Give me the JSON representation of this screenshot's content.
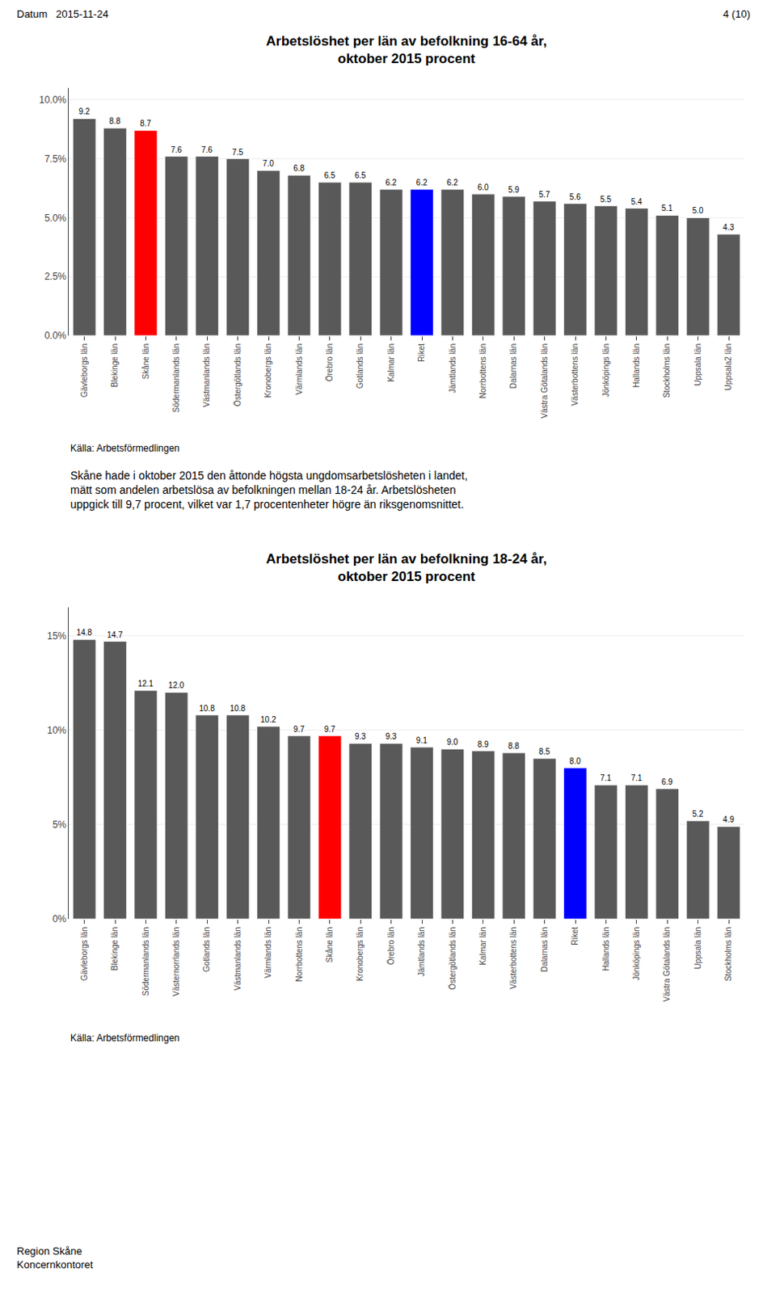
{
  "chart_data": [
    {
      "type": "bar",
      "title": "Arbetslöshet per län av befolkning 16-64 år,\noktober 2015 procent",
      "categories": [
        "Gävleborgs län",
        "Blekinge län",
        "Skåne län",
        "Södermanlands län",
        "Västmanlands län",
        "Östergötlands län",
        "Kronobergs län",
        "Värmlands län",
        "Örebro län",
        "Gotlands län",
        "Kalmar län",
        "Riket",
        "Jämtlands län",
        "Norrbottens län",
        "Dalarnas län",
        "Västra Götalands län",
        "Västerbottens län",
        "Jönköpings län",
        "Hallands län",
        "Stockholms län",
        "Uppsala län",
        "Uppsala2 län"
      ],
      "values": [
        9.2,
        8.8,
        8.7,
        7.6,
        7.6,
        7.5,
        7.0,
        6.8,
        6.5,
        6.5,
        6.2,
        6.2,
        6.2,
        6.0,
        5.9,
        5.7,
        5.6,
        5.5,
        5.4,
        5.1,
        5.0,
        4.3
      ],
      "value_labels": [
        "9.2",
        "8.8",
        "8.7",
        "7.6",
        "7.6",
        "7.5",
        "7.0",
        "6.8",
        "6.5",
        "6.5",
        "6.2",
        "6.2",
        "6.2",
        "6.0",
        "5.9",
        "5.7",
        "5.6",
        "5.5",
        "5.4",
        "5.1",
        "5.0",
        "4.3"
      ],
      "colors": [
        "#595959",
        "#595959",
        "#FF0000",
        "#595959",
        "#595959",
        "#595959",
        "#595959",
        "#595959",
        "#595959",
        "#595959",
        "#595959",
        "#0000FF",
        "#595959",
        "#595959",
        "#595959",
        "#595959",
        "#595959",
        "#595959",
        "#595959",
        "#595959",
        "#595959",
        "#595959"
      ],
      "ylim": [
        0,
        10.5
      ],
      "yticks": [
        {
          "value": 0.0,
          "label": "0.0%"
        },
        {
          "value": 2.5,
          "label": "2.5%"
        },
        {
          "value": 5.0,
          "label": "5.0%"
        },
        {
          "value": 7.5,
          "label": "7.5%"
        },
        {
          "value": 10.0,
          "label": "10.0%"
        }
      ],
      "grid": true,
      "data_labels": true,
      "annotations": [
        "Datum   2015-11-24",
        "4 (10)",
        "Källa: Arbetsförmedlingen",
        "Skåne hade i oktober 2015 den åttonde högsta ungdomsarbetslösheten i landet,\nmätt som andelen arbetslösa av befolkningen mellan 18-24 år. Arbetslösheten\nuppgick till 9,7 procent, vilket var 1,7 procentenheter högre än riksgenomsnittet."
      ]
    },
    {
      "type": "bar",
      "title": "Arbetslöshet per län av befolkning 18-24 år,\noktober 2015 procent",
      "categories": [
        "Gävleborgs län",
        "Blekinge län",
        "Södermanlands län",
        "Västernorrlands län",
        "Gotlands län",
        "Västmanlands län",
        "Värmlands län",
        "Norrbottens län",
        "Skåne län",
        "Kronobergs län",
        "Örebro län",
        "Jämtlands län",
        "Östergötlands län",
        "Kalmar län",
        "Västerbottens län",
        "Dalarnas län",
        "Riket",
        "Hallands län",
        "Jönköpings län",
        "Västra Götalands län",
        "Uppsala län",
        "Stockholms län"
      ],
      "values": [
        14.8,
        14.7,
        12.1,
        12.0,
        10.8,
        10.8,
        10.2,
        9.7,
        9.7,
        9.3,
        9.3,
        9.1,
        9.0,
        8.9,
        8.8,
        8.5,
        8.0,
        7.1,
        7.1,
        6.9,
        5.2,
        4.9
      ],
      "value_labels": [
        "14.8",
        "14.7",
        "12.1",
        "12.0",
        "10.8",
        "10.8",
        "10.2",
        "9.7",
        "9.7",
        "9.3",
        "9.3",
        "9.1",
        "9.0",
        "8.9",
        "8.8",
        "8.5",
        "8.0",
        "7.1",
        "7.1",
        "6.9",
        "5.2",
        "4.9"
      ],
      "colors": [
        "#595959",
        "#595959",
        "#595959",
        "#595959",
        "#595959",
        "#595959",
        "#595959",
        "#595959",
        "#FF0000",
        "#595959",
        "#595959",
        "#595959",
        "#595959",
        "#595959",
        "#595959",
        "#595959",
        "#0000FF",
        "#595959",
        "#595959",
        "#595959",
        "#595959",
        "#595959"
      ],
      "ylim": [
        0,
        16.5
      ],
      "yticks": [
        {
          "value": 0.0,
          "label": "0%"
        },
        {
          "value": 5.0,
          "label": "5%"
        },
        {
          "value": 10.0,
          "label": "10%"
        },
        {
          "value": 15.0,
          "label": "15%"
        }
      ],
      "grid": true,
      "data_labels": true,
      "annotations": [
        "Källa: Arbetsförmedlingen",
        "Region Skåne\nKoncernkontoret"
      ]
    }
  ]
}
